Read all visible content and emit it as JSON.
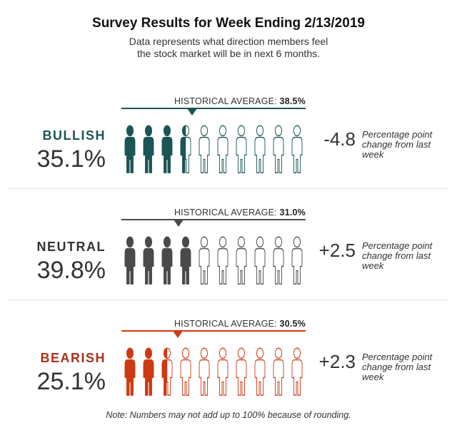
{
  "title": "Survey Results for Week Ending 2/13/2019",
  "subtitle": "Data represents what direction members feel the stock market will be in next 6 months.",
  "historical_label": "HISTORICAL AVERAGE:",
  "change_note": "Percentage point change from last week",
  "footnote": "Note: Numbers may not add up to 100% because of rounding.",
  "chart_data": {
    "type": "pictograph",
    "icons_total": 10,
    "icon_value_percent": 10,
    "categories": [
      {
        "label": "BULLISH",
        "value": 35.1,
        "value_text": "35.1%",
        "historical": 38.5,
        "historical_text": "38.5%",
        "change": -4.8,
        "change_text": "-4.8",
        "color": "#1c5556",
        "label_color": "#1c5556"
      },
      {
        "label": "NEUTRAL",
        "value": 39.8,
        "value_text": "39.8%",
        "historical": 31.0,
        "historical_text": "31.0%",
        "change": 2.5,
        "change_text": "+2.5",
        "color": "#4a4a4a",
        "label_color": "#333333"
      },
      {
        "label": "BEARISH",
        "value": 25.1,
        "value_text": "25.1%",
        "historical": 30.5,
        "historical_text": "30.5%",
        "change": 2.3,
        "change_text": "+2.3",
        "color": "#cc3a12",
        "label_color": "#a8321a"
      }
    ]
  }
}
